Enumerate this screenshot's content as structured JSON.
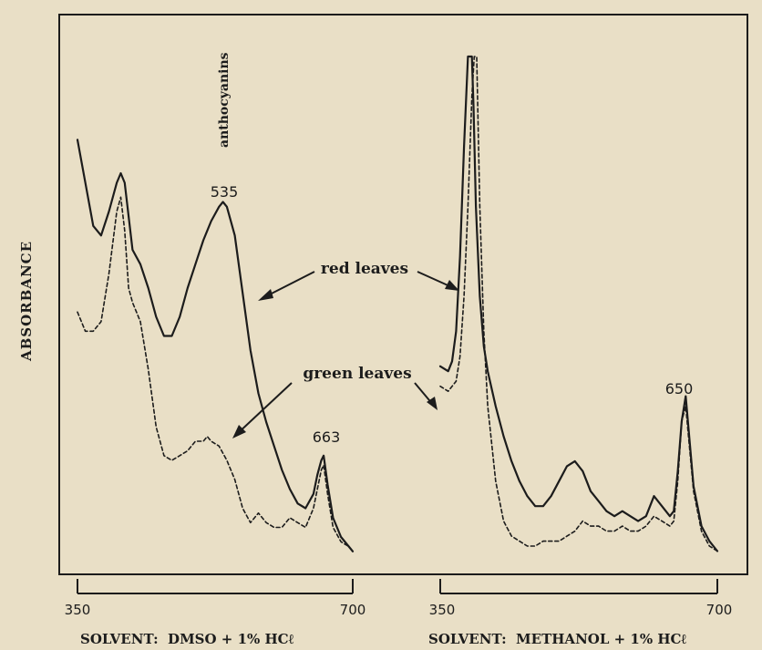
{
  "chart_data": [
    {
      "type": "line",
      "ylabel": "ABSORBANCE",
      "xlabel": "SOLVENT:  DMSO + 1% HCℓ",
      "xlim": [
        350,
        700
      ],
      "x_ticks": [
        "350",
        "700"
      ],
      "series": [
        {
          "name": "red leaves",
          "style": "solid",
          "x": [
            350,
            370,
            380,
            390,
            400,
            405,
            410,
            420,
            430,
            440,
            450,
            460,
            470,
            480,
            490,
            500,
            510,
            520,
            530,
            535,
            540,
            550,
            560,
            570,
            580,
            590,
            600,
            610,
            620,
            630,
            640,
            650,
            655,
            660,
            663,
            668,
            675,
            685,
            695,
            700
          ],
          "y": [
            0.87,
            0.69,
            0.67,
            0.72,
            0.78,
            0.8,
            0.78,
            0.64,
            0.61,
            0.56,
            0.5,
            0.46,
            0.46,
            0.5,
            0.56,
            0.61,
            0.66,
            0.7,
            0.73,
            0.74,
            0.73,
            0.67,
            0.55,
            0.43,
            0.34,
            0.28,
            0.23,
            0.18,
            0.14,
            0.11,
            0.1,
            0.13,
            0.17,
            0.2,
            0.21,
            0.15,
            0.08,
            0.04,
            0.02,
            0.01
          ]
        },
        {
          "name": "green leaves",
          "style": "dashed",
          "x": [
            350,
            360,
            370,
            380,
            390,
            400,
            405,
            410,
            415,
            420,
            430,
            440,
            450,
            460,
            470,
            480,
            490,
            500,
            510,
            515,
            520,
            530,
            540,
            550,
            560,
            570,
            580,
            590,
            600,
            610,
            620,
            630,
            640,
            650,
            655,
            660,
            663,
            668,
            675,
            685,
            695,
            700
          ],
          "y": [
            0.51,
            0.47,
            0.47,
            0.49,
            0.59,
            0.72,
            0.75,
            0.68,
            0.56,
            0.53,
            0.49,
            0.39,
            0.27,
            0.21,
            0.2,
            0.21,
            0.22,
            0.24,
            0.24,
            0.25,
            0.24,
            0.23,
            0.2,
            0.16,
            0.1,
            0.07,
            0.09,
            0.07,
            0.06,
            0.06,
            0.08,
            0.07,
            0.06,
            0.1,
            0.14,
            0.18,
            0.19,
            0.13,
            0.06,
            0.03,
            0.02,
            0.01
          ]
        }
      ],
      "annotations": [
        {
          "text": "anthocyanins",
          "x": 540
        },
        {
          "text": "535",
          "x": 535
        },
        {
          "text": "663",
          "x": 663
        },
        {
          "text": "red leaves"
        },
        {
          "text": "green leaves"
        }
      ]
    },
    {
      "type": "line",
      "xlabel": "SOLVENT:  METHANOL + 1% HCℓ",
      "xlim": [
        350,
        700
      ],
      "x_ticks": [
        "350",
        "700"
      ],
      "series": [
        {
          "name": "red leaves",
          "style": "solid",
          "x": [
            350,
            360,
            365,
            370,
            375,
            380,
            385,
            388,
            390,
            392,
            395,
            400,
            405,
            410,
            420,
            430,
            440,
            450,
            460,
            470,
            480,
            490,
            500,
            510,
            520,
            530,
            540,
            550,
            560,
            570,
            580,
            590,
            600,
            610,
            620,
            630,
            640,
            645,
            650,
            655,
            660,
            670,
            680,
            690,
            700
          ],
          "y": [
            0.38,
            0.37,
            0.39,
            0.45,
            0.6,
            0.82,
            1.0,
            1.0,
            1.0,
            0.9,
            0.7,
            0.52,
            0.42,
            0.37,
            0.3,
            0.24,
            0.19,
            0.15,
            0.12,
            0.1,
            0.1,
            0.12,
            0.15,
            0.18,
            0.19,
            0.17,
            0.13,
            0.11,
            0.09,
            0.08,
            0.09,
            0.08,
            0.07,
            0.08,
            0.12,
            0.1,
            0.08,
            0.09,
            0.17,
            0.27,
            0.32,
            0.14,
            0.06,
            0.03,
            0.01
          ]
        },
        {
          "name": "green leaves",
          "style": "dashed",
          "x": [
            350,
            360,
            370,
            375,
            380,
            385,
            390,
            393,
            396,
            400,
            405,
            410,
            420,
            430,
            440,
            450,
            460,
            470,
            480,
            490,
            500,
            510,
            520,
            530,
            540,
            550,
            560,
            570,
            580,
            590,
            600,
            610,
            620,
            630,
            640,
            645,
            650,
            655,
            660,
            670,
            680,
            690,
            700
          ],
          "y": [
            0.34,
            0.33,
            0.35,
            0.4,
            0.52,
            0.7,
            0.92,
            1.0,
            1.0,
            0.7,
            0.45,
            0.3,
            0.15,
            0.07,
            0.04,
            0.03,
            0.02,
            0.02,
            0.03,
            0.03,
            0.03,
            0.04,
            0.05,
            0.07,
            0.06,
            0.06,
            0.05,
            0.05,
            0.06,
            0.05,
            0.05,
            0.06,
            0.08,
            0.07,
            0.06,
            0.07,
            0.15,
            0.27,
            0.3,
            0.13,
            0.05,
            0.02,
            0.01
          ]
        }
      ],
      "annotations": [
        {
          "text": "650",
          "x": 650
        }
      ]
    }
  ]
}
